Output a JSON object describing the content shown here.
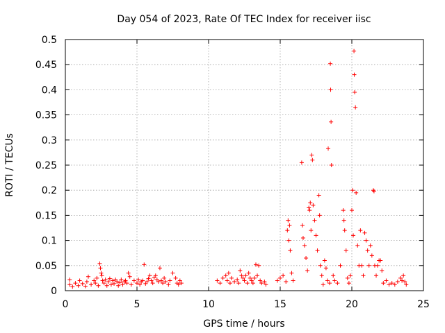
{
  "chart_data": {
    "type": "scatter",
    "title": "Day 054 of 2023, Rate Of TEC Index for receiver iisc",
    "xlabel": "GPS time / hours",
    "ylabel": "ROTI / TECUs",
    "xlim": [
      0,
      25
    ],
    "ylim": [
      0,
      0.5
    ],
    "grid": true,
    "marker": "+",
    "color": "#ff0000",
    "x_ticks": [
      0,
      5,
      10,
      15,
      20,
      25
    ],
    "x_tick_labels": [
      "0",
      "5",
      "10",
      "15",
      "20",
      "25"
    ],
    "y_ticks": [
      0,
      0.05,
      0.1,
      0.15,
      0.2,
      0.25,
      0.3,
      0.35,
      0.4,
      0.45,
      0.5
    ],
    "y_tick_labels": [
      "0",
      "0.05",
      "0.1",
      "0.15",
      "0.2",
      "0.25",
      "0.3",
      "0.35",
      "0.4",
      "0.45",
      "0.5"
    ],
    "series": [
      {
        "name": "ROTI",
        "points": [
          [
            0.3,
            0.022
          ],
          [
            0.3,
            0.012
          ],
          [
            0.5,
            0.008
          ],
          [
            0.7,
            0.015
          ],
          [
            0.9,
            0.01
          ],
          [
            1.0,
            0.02
          ],
          [
            1.2,
            0.014
          ],
          [
            1.4,
            0.009
          ],
          [
            1.5,
            0.018
          ],
          [
            1.6,
            0.028
          ],
          [
            1.8,
            0.012
          ],
          [
            2.0,
            0.02
          ],
          [
            2.1,
            0.015
          ],
          [
            2.2,
            0.025
          ],
          [
            2.3,
            0.01
          ],
          [
            2.4,
            0.054
          ],
          [
            2.45,
            0.045
          ],
          [
            2.5,
            0.035
          ],
          [
            2.55,
            0.03
          ],
          [
            2.6,
            0.02
          ],
          [
            2.7,
            0.015
          ],
          [
            2.8,
            0.022
          ],
          [
            2.9,
            0.01
          ],
          [
            3.0,
            0.018
          ],
          [
            3.1,
            0.024
          ],
          [
            3.2,
            0.012
          ],
          [
            3.3,
            0.02
          ],
          [
            3.4,
            0.014
          ],
          [
            3.5,
            0.022
          ],
          [
            3.6,
            0.018
          ],
          [
            3.7,
            0.01
          ],
          [
            3.8,
            0.016
          ],
          [
            3.9,
            0.022
          ],
          [
            4.0,
            0.012
          ],
          [
            4.1,
            0.018
          ],
          [
            4.2,
            0.02
          ],
          [
            4.3,
            0.015
          ],
          [
            4.4,
            0.035
          ],
          [
            4.5,
            0.028
          ],
          [
            4.6,
            0.012
          ],
          [
            4.8,
            0.02
          ],
          [
            5.0,
            0.015
          ],
          [
            5.1,
            0.022
          ],
          [
            5.2,
            0.012
          ],
          [
            5.3,
            0.018
          ],
          [
            5.4,
            0.02
          ],
          [
            5.5,
            0.052
          ],
          [
            5.6,
            0.014
          ],
          [
            5.7,
            0.018
          ],
          [
            5.8,
            0.024
          ],
          [
            5.9,
            0.03
          ],
          [
            6.0,
            0.02
          ],
          [
            6.1,
            0.015
          ],
          [
            6.2,
            0.026
          ],
          [
            6.3,
            0.03
          ],
          [
            6.4,
            0.022
          ],
          [
            6.5,
            0.018
          ],
          [
            6.6,
            0.045
          ],
          [
            6.7,
            0.02
          ],
          [
            6.8,
            0.015
          ],
          [
            6.9,
            0.025
          ],
          [
            7.0,
            0.018
          ],
          [
            7.2,
            0.012
          ],
          [
            7.3,
            0.02
          ],
          [
            7.5,
            0.035
          ],
          [
            7.7,
            0.025
          ],
          [
            7.8,
            0.015
          ],
          [
            7.9,
            0.012
          ],
          [
            8.0,
            0.02
          ],
          [
            8.1,
            0.015
          ],
          [
            10.6,
            0.02
          ],
          [
            10.8,
            0.015
          ],
          [
            11.0,
            0.025
          ],
          [
            11.2,
            0.03
          ],
          [
            11.3,
            0.02
          ],
          [
            11.4,
            0.035
          ],
          [
            11.5,
            0.015
          ],
          [
            11.6,
            0.025
          ],
          [
            11.8,
            0.018
          ],
          [
            12.0,
            0.022
          ],
          [
            12.1,
            0.015
          ],
          [
            12.2,
            0.04
          ],
          [
            12.3,
            0.03
          ],
          [
            12.4,
            0.025
          ],
          [
            12.5,
            0.02
          ],
          [
            12.6,
            0.03
          ],
          [
            12.7,
            0.015
          ],
          [
            12.8,
            0.035
          ],
          [
            12.9,
            0.025
          ],
          [
            13.0,
            0.02
          ],
          [
            13.1,
            0.015
          ],
          [
            13.2,
            0.025
          ],
          [
            13.3,
            0.052
          ],
          [
            13.4,
            0.03
          ],
          [
            13.5,
            0.05
          ],
          [
            13.6,
            0.02
          ],
          [
            13.7,
            0.015
          ],
          [
            13.9,
            0.018
          ],
          [
            14.0,
            0.012
          ],
          [
            14.8,
            0.02
          ],
          [
            15.0,
            0.025
          ],
          [
            15.2,
            0.03
          ],
          [
            15.4,
            0.018
          ],
          [
            15.5,
            0.12
          ],
          [
            15.55,
            0.14
          ],
          [
            15.6,
            0.1
          ],
          [
            15.65,
            0.13
          ],
          [
            15.7,
            0.08
          ],
          [
            15.8,
            0.035
          ],
          [
            15.9,
            0.02
          ],
          [
            16.5,
            0.255
          ],
          [
            16.55,
            0.13
          ],
          [
            16.6,
            0.105
          ],
          [
            16.7,
            0.09
          ],
          [
            16.8,
            0.065
          ],
          [
            16.9,
            0.04
          ],
          [
            17.0,
            0.165
          ],
          [
            17.05,
            0.16
          ],
          [
            17.1,
            0.175
          ],
          [
            17.15,
            0.12
          ],
          [
            17.2,
            0.27
          ],
          [
            17.25,
            0.26
          ],
          [
            17.3,
            0.17
          ],
          [
            17.4,
            0.14
          ],
          [
            17.5,
            0.11
          ],
          [
            17.6,
            0.08
          ],
          [
            17.7,
            0.19
          ],
          [
            17.75,
            0.15
          ],
          [
            17.8,
            0.05
          ],
          [
            17.9,
            0.03
          ],
          [
            18.0,
            0.012
          ],
          [
            18.1,
            0.06
          ],
          [
            18.2,
            0.045
          ],
          [
            18.3,
            0.02
          ],
          [
            18.35,
            0.283
          ],
          [
            18.45,
            0.015
          ],
          [
            18.5,
            0.452
          ],
          [
            18.52,
            0.4
          ],
          [
            18.55,
            0.336
          ],
          [
            18.58,
            0.25
          ],
          [
            18.7,
            0.03
          ],
          [
            18.8,
            0.02
          ],
          [
            19.0,
            0.015
          ],
          [
            19.2,
            0.05
          ],
          [
            19.4,
            0.16
          ],
          [
            19.45,
            0.14
          ],
          [
            19.5,
            0.12
          ],
          [
            19.6,
            0.08
          ],
          [
            19.7,
            0.025
          ],
          [
            19.8,
            0.015
          ],
          [
            19.9,
            0.03
          ],
          [
            20.0,
            0.16
          ],
          [
            20.05,
            0.2
          ],
          [
            20.1,
            0.11
          ],
          [
            20.15,
            0.477
          ],
          [
            20.17,
            0.43
          ],
          [
            20.2,
            0.395
          ],
          [
            20.25,
            0.365
          ],
          [
            20.3,
            0.195
          ],
          [
            20.4,
            0.09
          ],
          [
            20.5,
            0.05
          ],
          [
            20.6,
            0.12
          ],
          [
            20.7,
            0.05
          ],
          [
            20.8,
            0.03
          ],
          [
            20.9,
            0.115
          ],
          [
            21.0,
            0.1
          ],
          [
            21.1,
            0.08
          ],
          [
            21.2,
            0.05
          ],
          [
            21.3,
            0.09
          ],
          [
            21.4,
            0.07
          ],
          [
            21.5,
            0.2
          ],
          [
            21.55,
            0.198
          ],
          [
            21.6,
            0.05
          ],
          [
            21.7,
            0.03
          ],
          [
            21.8,
            0.05
          ],
          [
            21.9,
            0.06
          ],
          [
            22.0,
            0.06
          ],
          [
            22.1,
            0.04
          ],
          [
            22.2,
            0.015
          ],
          [
            22.4,
            0.02
          ],
          [
            22.6,
            0.012
          ],
          [
            22.8,
            0.015
          ],
          [
            23.0,
            0.012
          ],
          [
            23.2,
            0.018
          ],
          [
            23.4,
            0.025
          ],
          [
            23.5,
            0.02
          ],
          [
            23.6,
            0.03
          ],
          [
            23.7,
            0.018
          ],
          [
            23.8,
            0.012
          ]
        ]
      }
    ]
  }
}
